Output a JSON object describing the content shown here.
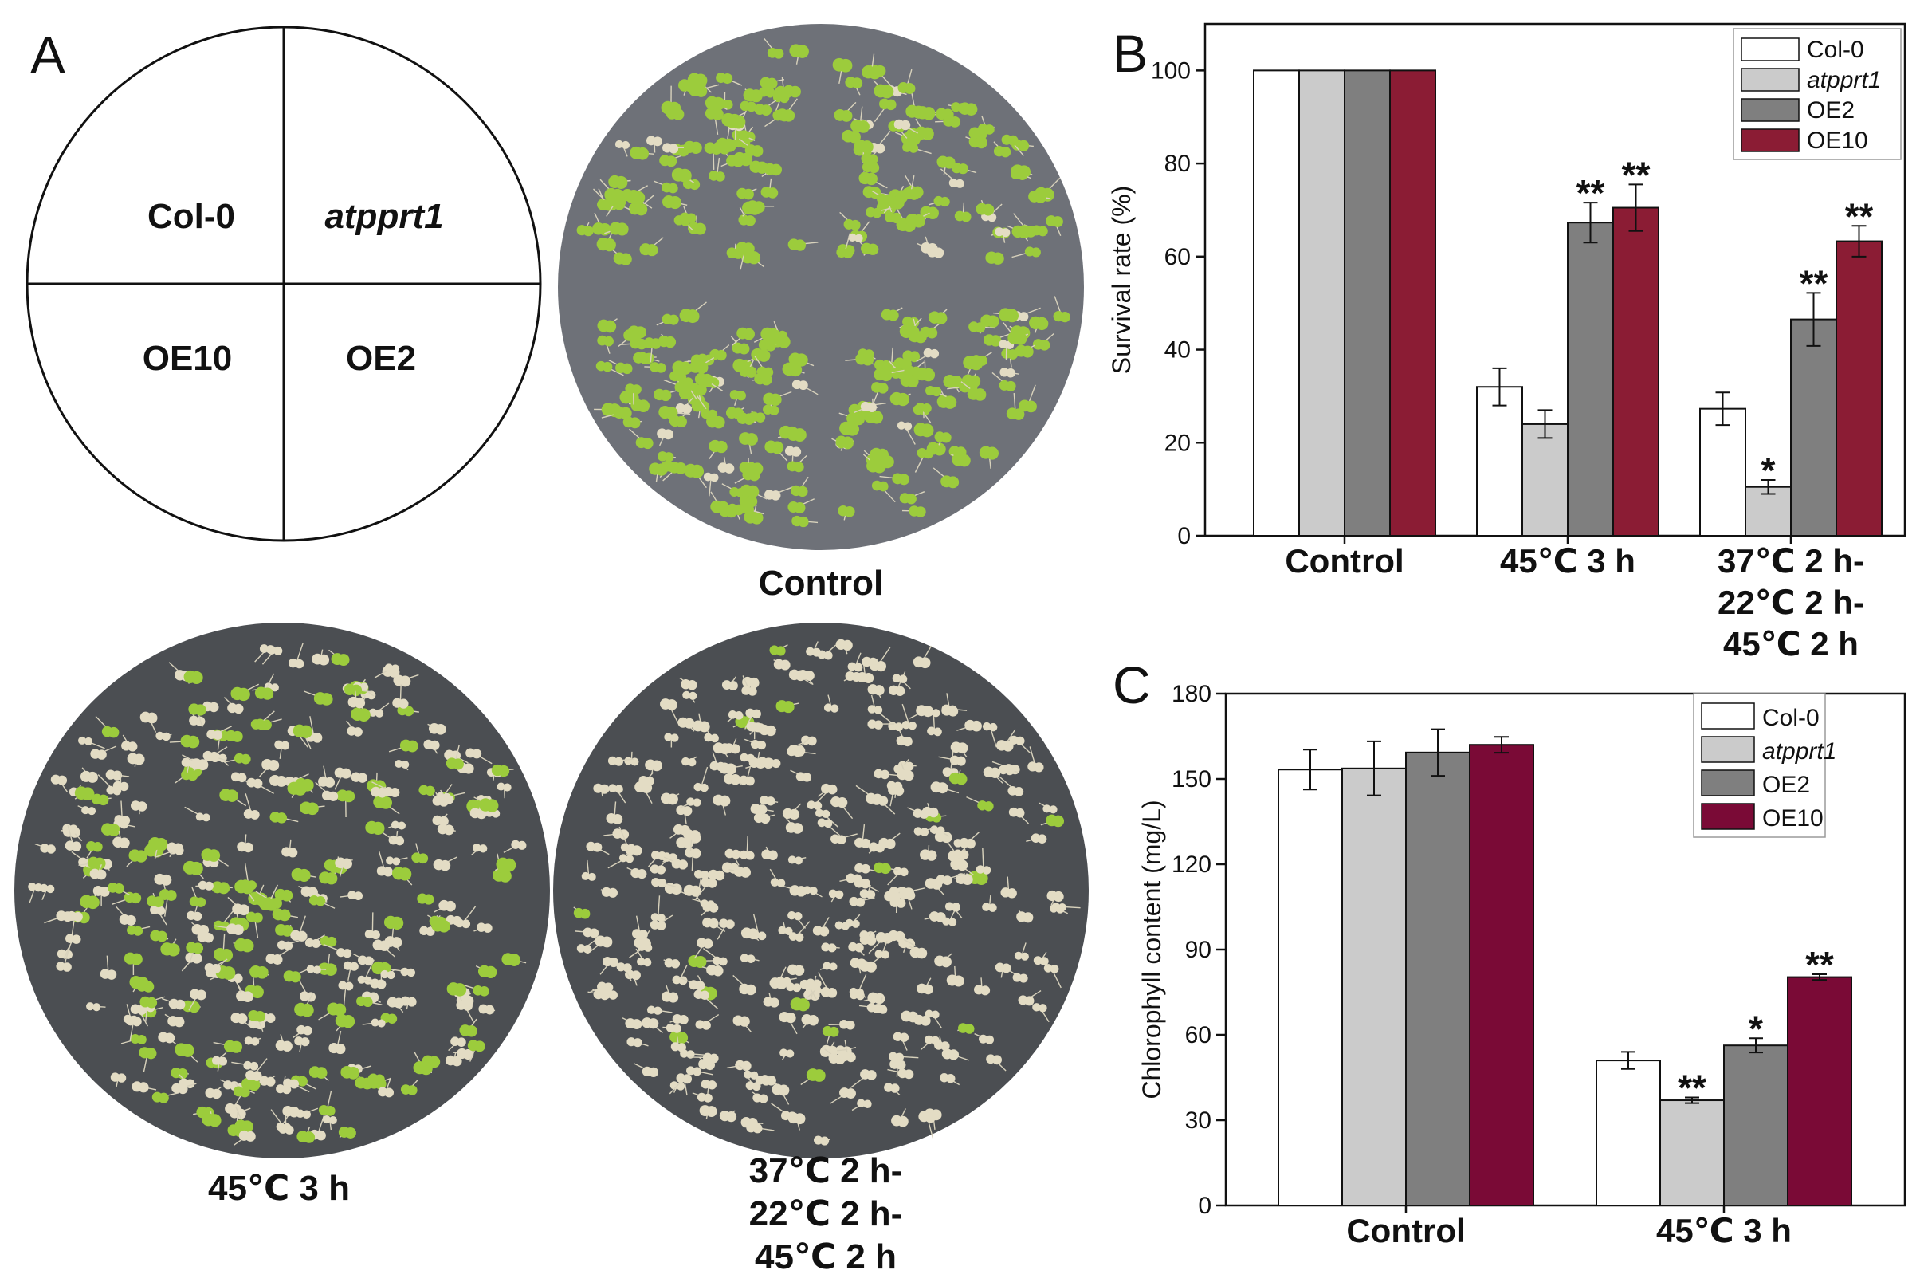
{
  "panels": {
    "A": "A",
    "B": "B",
    "C": "C"
  },
  "panel_a": {
    "diagram_quadrants": {
      "top_left": "Col-0",
      "top_right": "atpprt1",
      "bottom_left": "OE10",
      "bottom_right": "OE2"
    },
    "plate_captions": {
      "control": "Control",
      "heat": "45℃ 3 h",
      "acclim_line1": "37℃ 2 h-",
      "acclim_line2": "22℃ 2 h-",
      "acclim_line3": "45℃ 2 h"
    },
    "colors": {
      "plate_gray": "#4b4e52",
      "plate_control": "#6e7178",
      "seedling_green": "#9ccc3c",
      "seedling_bleached": "#e3dcc4"
    }
  },
  "series_colors": [
    "#ffffff",
    "#cbcbcb",
    "#7f7f7f",
    "#8b1c34"
  ],
  "chart_data": [
    {
      "type": "bar",
      "panel": "B",
      "title": "",
      "xlabel": "",
      "ylabel": "Survival rate (%)",
      "ylim": [
        0,
        110
      ],
      "yticks": [
        0,
        20,
        40,
        60,
        80,
        100
      ],
      "categories": [
        "Control",
        "45℃ 3 h",
        "37℃ 2 h-\n22℃ 2 h-\n45℃ 2 h"
      ],
      "category_lines": [
        [
          "Control"
        ],
        [
          "45℃ 3 h"
        ],
        [
          "37℃ 2 h-",
          "22℃ 2 h-",
          "45℃ 2 h"
        ]
      ],
      "legend": "top-right",
      "series": [
        {
          "name": "Col-0",
          "italic": false,
          "color": "#ffffff",
          "values": [
            100,
            32,
            27.3
          ],
          "errors": [
            0,
            4,
            3.5
          ],
          "sig": [
            "",
            "",
            ""
          ]
        },
        {
          "name": "atpprt1",
          "italic": true,
          "color": "#cbcbcb",
          "values": [
            100,
            24,
            10.5
          ],
          "errors": [
            0,
            3,
            1.5
          ],
          "sig": [
            "",
            "",
            "*"
          ]
        },
        {
          "name": "OE2",
          "italic": false,
          "color": "#7f7f7f",
          "values": [
            100,
            67.3,
            46.5
          ],
          "errors": [
            0,
            4.3,
            5.7
          ],
          "sig": [
            "",
            "**",
            "**"
          ]
        },
        {
          "name": "OE10",
          "italic": false,
          "color": "#8b1c34",
          "values": [
            100,
            70.5,
            63.3
          ],
          "errors": [
            0,
            5,
            3.3
          ],
          "sig": [
            "",
            "**",
            "**"
          ]
        }
      ]
    },
    {
      "type": "bar",
      "panel": "C",
      "title": "",
      "xlabel": "",
      "ylabel": "Chlorophyll content (mg/L)",
      "ylim": [
        0,
        180
      ],
      "yticks": [
        0,
        30,
        60,
        90,
        120,
        150,
        180
      ],
      "categories": [
        "Control",
        "45℃ 3 h"
      ],
      "category_lines": [
        [
          "Control"
        ],
        [
          "45℃ 3 h"
        ]
      ],
      "legend": "top-right",
      "series": [
        {
          "name": "Col-0",
          "italic": false,
          "color": "#ffffff",
          "values": [
            153.3,
            51
          ],
          "errors": [
            7,
            3
          ],
          "sig": [
            "",
            ""
          ]
        },
        {
          "name": "atpprt1",
          "italic": true,
          "color": "#cbcbcb",
          "values": [
            153.7,
            37
          ],
          "errors": [
            9.5,
            1
          ],
          "sig": [
            "",
            "**"
          ]
        },
        {
          "name": "OE2",
          "italic": false,
          "color": "#7f7f7f",
          "values": [
            159.3,
            56.3
          ],
          "errors": [
            8.2,
            2.5
          ],
          "sig": [
            "",
            "*"
          ]
        },
        {
          "name": "OE10",
          "italic": false,
          "color": "#7a0a36",
          "values": [
            162,
            80.3
          ],
          "errors": [
            2.8,
            1
          ],
          "sig": [
            "",
            "**"
          ]
        }
      ]
    }
  ]
}
